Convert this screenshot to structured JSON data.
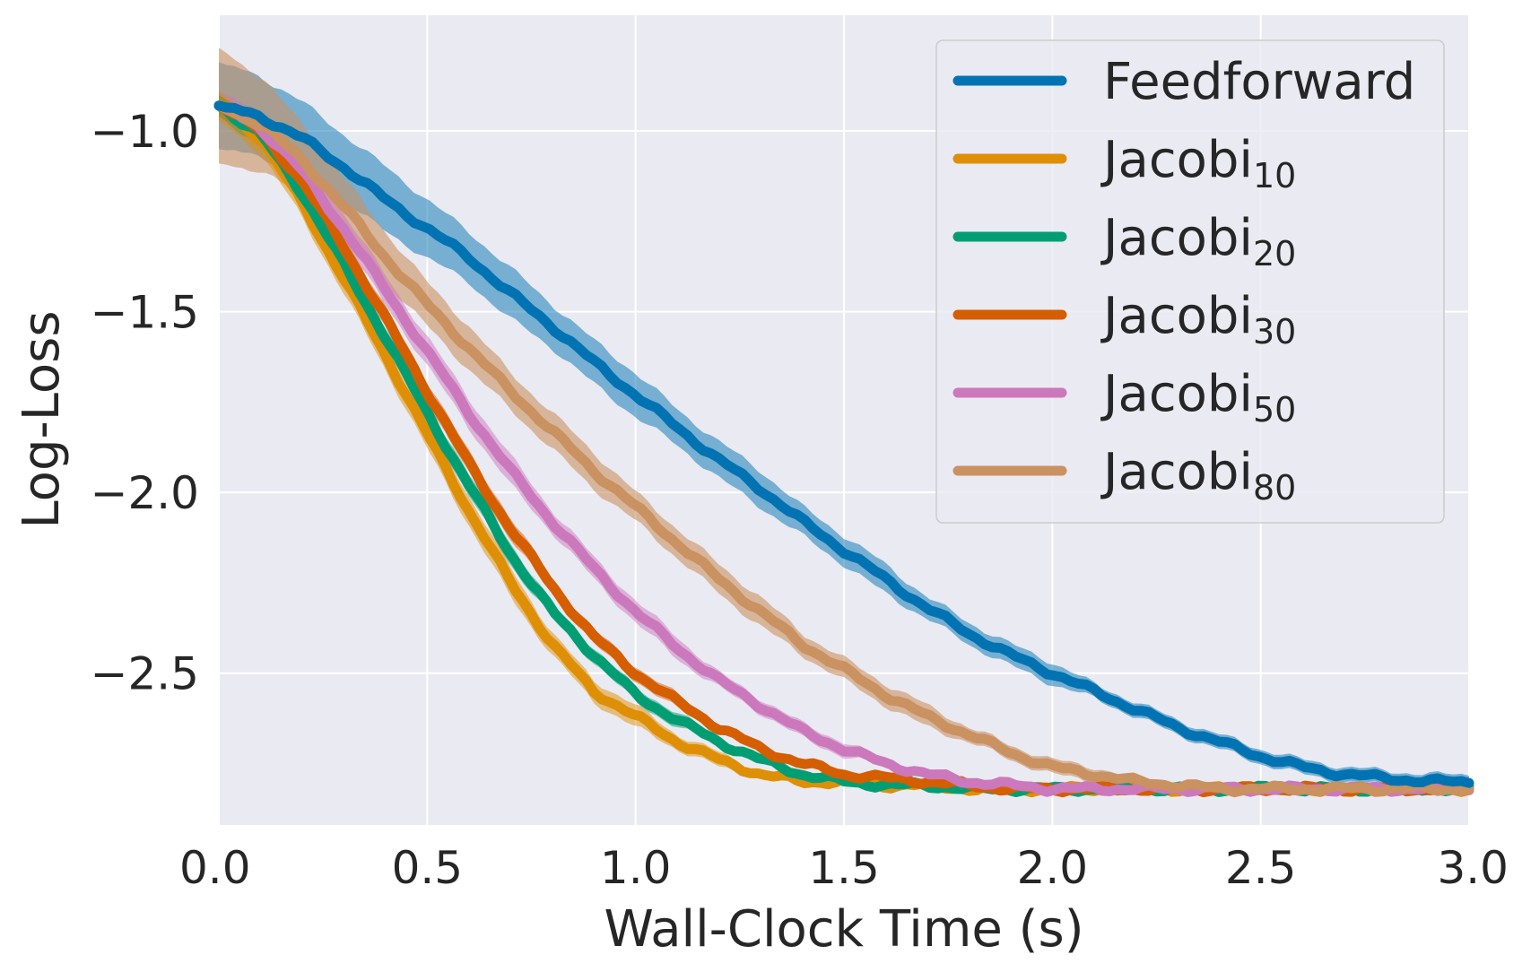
{
  "chart_data": {
    "type": "line",
    "title": "",
    "xlabel": "Wall-Clock Time (s)",
    "ylabel": "Log-Loss",
    "xlim": [
      0.0,
      3.0
    ],
    "ylim": [
      -2.92,
      -0.68
    ],
    "xticks": [
      0.0,
      0.5,
      1.0,
      1.5,
      2.0,
      2.5,
      3.0
    ],
    "xtick_labels": [
      "0.0",
      "0.5",
      "1.0",
      "1.5",
      "2.0",
      "2.5",
      "3.0"
    ],
    "yticks": [
      -1.0,
      -1.5,
      -2.0,
      -2.5
    ],
    "ytick_labels": [
      "−1.0",
      "−1.5",
      "−2.0",
      "−2.5"
    ],
    "grid": true,
    "legend_position": "top-right",
    "series": [
      {
        "name": "Feedforward",
        "label_main": "Feedforward",
        "label_sub": "",
        "color": "#0173b2",
        "band_opacity": 0.5,
        "x": [
          0.0,
          0.1,
          0.2,
          0.3,
          0.4,
          0.5,
          0.6,
          0.7,
          0.8,
          0.9,
          1.0,
          1.1,
          1.2,
          1.3,
          1.4,
          1.5,
          1.6,
          1.7,
          1.8,
          1.9,
          2.0,
          2.1,
          2.2,
          2.3,
          2.4,
          2.5,
          2.6,
          2.7,
          2.8,
          2.9,
          3.0
        ],
        "y": [
          -0.93,
          -0.96,
          -1.02,
          -1.1,
          -1.19,
          -1.27,
          -1.35,
          -1.45,
          -1.54,
          -1.64,
          -1.73,
          -1.82,
          -1.91,
          -1.99,
          -2.08,
          -2.16,
          -2.24,
          -2.32,
          -2.39,
          -2.45,
          -2.5,
          -2.55,
          -2.6,
          -2.65,
          -2.69,
          -2.73,
          -2.76,
          -2.78,
          -2.79,
          -2.8,
          -2.8
        ],
        "spread": [
          0.12,
          0.11,
          0.1,
          0.09,
          0.09,
          0.08,
          0.07,
          0.07,
          0.06,
          0.06,
          0.06,
          0.05,
          0.05,
          0.05,
          0.04,
          0.04,
          0.04,
          0.03,
          0.03,
          0.03,
          0.03,
          0.02,
          0.02,
          0.02,
          0.02,
          0.02,
          0.02,
          0.02,
          0.02,
          0.02,
          0.02
        ]
      },
      {
        "name": "Jacobi10",
        "label_main": "Jacobi",
        "label_sub": "10",
        "color": "#de8f05",
        "band_opacity": 0.5,
        "x": [
          0.0,
          0.1,
          0.2,
          0.3,
          0.4,
          0.5,
          0.6,
          0.7,
          0.8,
          0.9,
          1.0,
          1.1,
          1.2,
          1.3,
          1.4,
          1.5,
          1.6,
          1.7,
          1.8,
          1.9,
          2.0,
          2.1,
          2.2,
          2.3,
          2.4,
          2.5,
          2.6,
          2.7,
          2.8,
          2.9,
          3.0
        ],
        "y": [
          -0.93,
          -1.02,
          -1.2,
          -1.41,
          -1.62,
          -1.84,
          -2.05,
          -2.25,
          -2.42,
          -2.55,
          -2.62,
          -2.69,
          -2.74,
          -2.78,
          -2.8,
          -2.8,
          -2.81,
          -2.81,
          -2.82,
          -2.82,
          -2.82,
          -2.82,
          -2.82,
          -2.82,
          -2.82,
          -2.82,
          -2.82,
          -2.82,
          -2.82,
          -2.82,
          -2.82
        ],
        "spread": [
          0.04,
          0.04,
          0.04,
          0.04,
          0.04,
          0.04,
          0.04,
          0.04,
          0.03,
          0.03,
          0.03,
          0.02,
          0.02,
          0.01,
          0.01,
          0.01,
          0.01,
          0.01,
          0.01,
          0.01,
          0.01,
          0.01,
          0.01,
          0.01,
          0.01,
          0.01,
          0.01,
          0.01,
          0.01,
          0.01,
          0.01
        ]
      },
      {
        "name": "Jacobi20",
        "label_main": "Jacobi",
        "label_sub": "20",
        "color": "#029e73",
        "band_opacity": 0.5,
        "x": [
          0.0,
          0.1,
          0.2,
          0.3,
          0.4,
          0.5,
          0.6,
          0.7,
          0.8,
          0.9,
          1.0,
          1.1,
          1.2,
          1.3,
          1.4,
          1.5,
          1.6,
          1.7,
          1.8,
          1.9,
          2.0,
          2.1,
          2.2,
          2.3,
          2.4,
          2.5,
          2.6,
          2.7,
          2.8,
          2.9,
          3.0
        ],
        "y": [
          -0.93,
          -1.01,
          -1.17,
          -1.37,
          -1.57,
          -1.78,
          -1.98,
          -2.17,
          -2.33,
          -2.45,
          -2.56,
          -2.63,
          -2.69,
          -2.74,
          -2.78,
          -2.8,
          -2.81,
          -2.81,
          -2.82,
          -2.82,
          -2.82,
          -2.82,
          -2.82,
          -2.82,
          -2.82,
          -2.82,
          -2.82,
          -2.82,
          -2.82,
          -2.82,
          -2.82
        ],
        "spread": [
          0.03,
          0.03,
          0.03,
          0.03,
          0.03,
          0.03,
          0.03,
          0.03,
          0.02,
          0.02,
          0.02,
          0.02,
          0.01,
          0.01,
          0.01,
          0.01,
          0.01,
          0.01,
          0.01,
          0.01,
          0.01,
          0.01,
          0.01,
          0.01,
          0.01,
          0.01,
          0.01,
          0.01,
          0.01,
          0.01,
          0.01
        ]
      },
      {
        "name": "Jacobi30",
        "label_main": "Jacobi",
        "label_sub": "30",
        "color": "#d55e00",
        "band_opacity": 0.5,
        "x": [
          0.0,
          0.1,
          0.2,
          0.3,
          0.4,
          0.5,
          0.6,
          0.7,
          0.8,
          0.9,
          1.0,
          1.1,
          1.2,
          1.3,
          1.4,
          1.5,
          1.6,
          1.7,
          1.8,
          1.9,
          2.0,
          2.1,
          2.2,
          2.3,
          2.4,
          2.5,
          2.6,
          2.7,
          2.8,
          2.9,
          3.0
        ],
        "y": [
          -0.93,
          -1.0,
          -1.14,
          -1.32,
          -1.52,
          -1.72,
          -1.92,
          -2.1,
          -2.26,
          -2.4,
          -2.5,
          -2.58,
          -2.65,
          -2.71,
          -2.75,
          -2.78,
          -2.79,
          -2.8,
          -2.81,
          -2.82,
          -2.82,
          -2.82,
          -2.82,
          -2.82,
          -2.82,
          -2.82,
          -2.82,
          -2.82,
          -2.82,
          -2.82,
          -2.82
        ],
        "spread": [
          0.03,
          0.03,
          0.03,
          0.03,
          0.03,
          0.03,
          0.03,
          0.03,
          0.02,
          0.02,
          0.02,
          0.02,
          0.01,
          0.01,
          0.01,
          0.01,
          0.01,
          0.01,
          0.01,
          0.01,
          0.01,
          0.01,
          0.01,
          0.01,
          0.01,
          0.01,
          0.01,
          0.01,
          0.01,
          0.01,
          0.01
        ]
      },
      {
        "name": "Jacobi50",
        "label_main": "Jacobi",
        "label_sub": "50",
        "color": "#cc78bc",
        "band_opacity": 0.5,
        "x": [
          0.0,
          0.1,
          0.2,
          0.3,
          0.4,
          0.5,
          0.6,
          0.7,
          0.8,
          0.9,
          1.0,
          1.1,
          1.2,
          1.3,
          1.4,
          1.5,
          1.6,
          1.7,
          1.8,
          1.9,
          2.0,
          2.1,
          2.2,
          2.3,
          2.4,
          2.5,
          2.6,
          2.7,
          2.8,
          2.9,
          3.0
        ],
        "y": [
          -0.93,
          -0.99,
          -1.11,
          -1.27,
          -1.44,
          -1.61,
          -1.78,
          -1.94,
          -2.08,
          -2.21,
          -2.33,
          -2.43,
          -2.52,
          -2.59,
          -2.66,
          -2.71,
          -2.75,
          -2.78,
          -2.8,
          -2.81,
          -2.82,
          -2.82,
          -2.82,
          -2.82,
          -2.82,
          -2.82,
          -2.82,
          -2.82,
          -2.82,
          -2.82,
          -2.82
        ],
        "spread": [
          0.04,
          0.04,
          0.04,
          0.04,
          0.04,
          0.04,
          0.04,
          0.04,
          0.03,
          0.03,
          0.03,
          0.03,
          0.02,
          0.02,
          0.02,
          0.02,
          0.01,
          0.01,
          0.01,
          0.01,
          0.01,
          0.01,
          0.01,
          0.01,
          0.01,
          0.01,
          0.01,
          0.01,
          0.01,
          0.01,
          0.01
        ]
      },
      {
        "name": "Jacobi80",
        "label_main": "Jacobi",
        "label_sub": "80",
        "color": "#ca9161",
        "band_opacity": 0.6,
        "x": [
          0.0,
          0.1,
          0.2,
          0.3,
          0.4,
          0.5,
          0.6,
          0.7,
          0.8,
          0.9,
          1.0,
          1.1,
          1.2,
          1.3,
          1.4,
          1.5,
          1.6,
          1.7,
          1.8,
          1.9,
          2.0,
          2.1,
          2.2,
          2.3,
          2.4,
          2.5,
          2.6,
          2.7,
          2.8,
          2.9,
          3.0
        ],
        "y": [
          -0.93,
          -0.98,
          -1.08,
          -1.21,
          -1.35,
          -1.48,
          -1.6,
          -1.72,
          -1.83,
          -1.94,
          -2.04,
          -2.14,
          -2.24,
          -2.33,
          -2.42,
          -2.49,
          -2.56,
          -2.62,
          -2.67,
          -2.72,
          -2.76,
          -2.78,
          -2.8,
          -2.81,
          -2.82,
          -2.82,
          -2.82,
          -2.82,
          -2.82,
          -2.82,
          -2.82
        ],
        "spread": [
          0.16,
          0.13,
          0.1,
          0.08,
          0.07,
          0.06,
          0.06,
          0.05,
          0.05,
          0.05,
          0.04,
          0.04,
          0.04,
          0.04,
          0.03,
          0.03,
          0.03,
          0.03,
          0.02,
          0.02,
          0.02,
          0.02,
          0.01,
          0.01,
          0.01,
          0.01,
          0.01,
          0.01,
          0.01,
          0.01,
          0.01
        ]
      }
    ]
  }
}
